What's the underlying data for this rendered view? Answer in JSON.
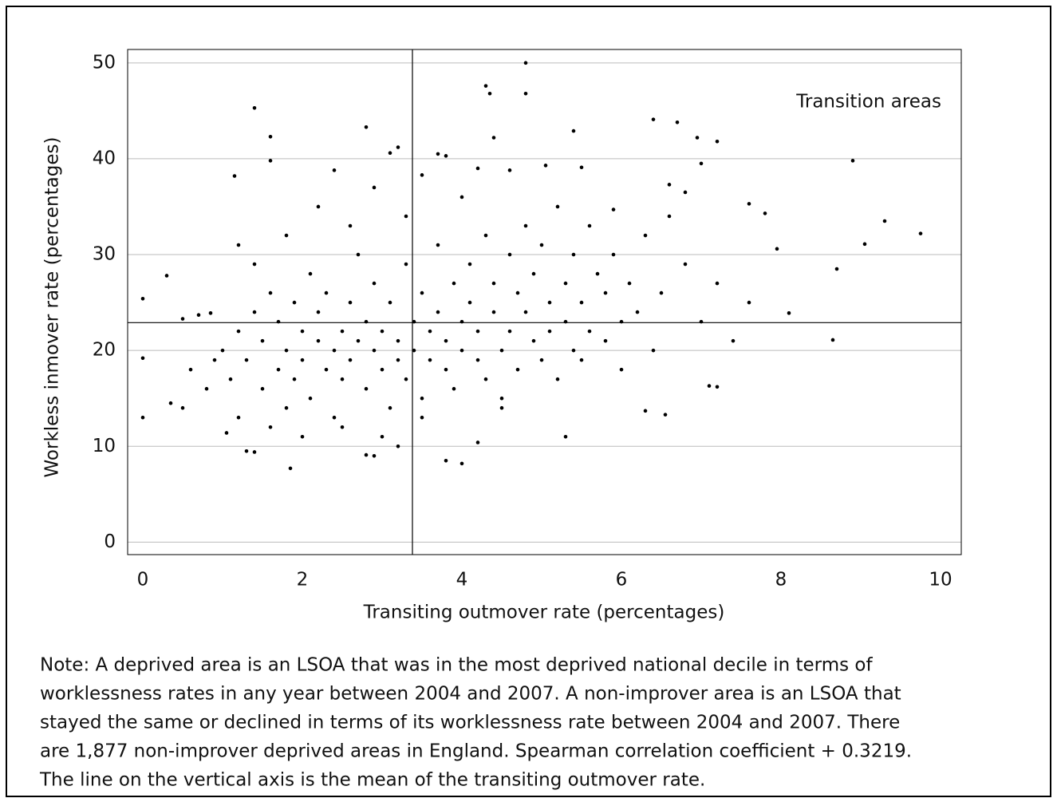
{
  "chart_data": {
    "type": "scatter",
    "xlabel": "Transiting outmover rate (percentages)",
    "ylabel": "Workless inmover rate (percentages)",
    "annotation": "Transition areas",
    "color": "#000000",
    "grid": true,
    "xlim": [
      -0.19,
      10.26
    ],
    "ylim": [
      -1.3,
      51.4
    ],
    "xticks": [
      0,
      2,
      4,
      6,
      8,
      10
    ],
    "yticks": [
      0,
      10,
      20,
      30,
      40,
      50
    ],
    "mean_x": 3.38,
    "mean_y": 22.9,
    "x": [
      0.0,
      0.0,
      0.0,
      0.3,
      1.4,
      1.6,
      1.6,
      2.8,
      3.1,
      3.2,
      4.3,
      4.35,
      4.8,
      4.8,
      4.4,
      5.4,
      6.4,
      6.7,
      6.95,
      7.2,
      8.9,
      9.75,
      9.3,
      9.05,
      8.7,
      8.65,
      8.1,
      7.95,
      7.8,
      7.6,
      7.2,
      7.1,
      6.3,
      6.55,
      5.3,
      4.2,
      3.8,
      4.0,
      1.85,
      2.8,
      2.9,
      3.2,
      1.3,
      1.4,
      1.05,
      0.35,
      0.5,
      0.5,
      0.7,
      0.85,
      1.15,
      1.2,
      7.0,
      6.6,
      6.8,
      5.9,
      5.5,
      5.05,
      4.6,
      4.2,
      3.8,
      3.7,
      3.5,
      1.0,
      1.1,
      1.2,
      1.3,
      1.4,
      1.5,
      1.5,
      1.6,
      1.7,
      1.7,
      1.8,
      1.8,
      1.9,
      1.9,
      2.0,
      2.0,
      2.1,
      2.1,
      2.2,
      2.2,
      2.3,
      2.3,
      2.4,
      2.4,
      2.5,
      2.5,
      2.6,
      2.6,
      2.7,
      2.7,
      2.8,
      2.8,
      2.9,
      2.9,
      3.0,
      3.0,
      3.1,
      3.1,
      3.2,
      3.2,
      3.3,
      3.3,
      3.4,
      3.4,
      3.5,
      3.5,
      3.6,
      3.6,
      3.7,
      3.7,
      3.8,
      3.8,
      3.9,
      3.9,
      4.0,
      4.0,
      4.1,
      4.1,
      4.2,
      4.2,
      4.3,
      4.3,
      4.4,
      4.4,
      4.5,
      4.5,
      4.6,
      4.6,
      4.7,
      4.7,
      4.8,
      4.8,
      4.9,
      4.9,
      5.0,
      5.0,
      5.1,
      5.1,
      5.2,
      5.2,
      5.3,
      5.3,
      5.4,
      5.4,
      5.5,
      5.5,
      5.6,
      5.6,
      5.7,
      5.8,
      5.8,
      5.9,
      6.0,
      6.0,
      6.1,
      6.2,
      6.3,
      6.4,
      6.5,
      6.6,
      6.8,
      7.0,
      7.2,
      7.4,
      7.6,
      0.8,
      0.9,
      0.6,
      1.2,
      1.6,
      2.0,
      2.5,
      3.0,
      3.5,
      4.5,
      1.4,
      1.8,
      2.2,
      2.6,
      2.9,
      3.3,
      4.0,
      2.4
    ],
    "values": [
      25.4,
      19.2,
      13,
      27.8,
      45.3,
      42.3,
      39.8,
      43.3,
      40.6,
      41.2,
      47.6,
      46.8,
      50,
      46.8,
      42.2,
      42.9,
      44.1,
      43.8,
      42.2,
      41.8,
      39.8,
      32.2,
      33.5,
      31.1,
      28.5,
      21.1,
      23.9,
      30.6,
      34.3,
      35.3,
      16.2,
      16.3,
      13.7,
      13.3,
      11,
      10.4,
      8.5,
      8.2,
      7.7,
      9.1,
      9,
      10,
      9.5,
      9.4,
      11.4,
      14.5,
      14,
      23.3,
      23.7,
      23.9,
      38.2,
      31,
      39.5,
      37.3,
      36.5,
      34.7,
      39.1,
      39.3,
      38.8,
      39.0,
      40.3,
      40.5,
      38.3,
      20,
      17,
      22,
      19,
      24,
      16,
      21,
      26,
      18,
      23,
      14,
      20,
      25,
      17,
      22,
      19,
      28,
      15,
      21,
      24,
      18,
      26,
      20,
      13,
      22,
      17,
      25,
      19,
      30,
      21,
      16,
      23,
      20,
      27,
      18,
      22,
      14,
      25,
      19,
      21,
      29,
      17,
      23,
      20,
      26,
      15,
      22,
      19,
      31,
      24,
      18,
      21,
      27,
      16,
      23,
      20,
      29,
      25,
      19,
      22,
      32,
      17,
      24,
      27,
      20,
      15,
      30,
      22,
      26,
      18,
      24,
      33,
      21,
      28,
      19,
      31,
      25,
      22,
      35,
      17,
      27,
      23,
      20,
      30,
      25,
      19,
      33,
      22,
      28,
      21,
      26,
      30,
      23,
      18,
      27,
      24,
      32,
      20,
      26,
      34,
      29,
      23,
      27,
      21,
      25,
      16,
      19,
      18,
      13,
      12,
      11,
      12,
      11,
      13,
      14,
      29,
      32,
      35,
      33,
      37,
      34,
      36,
      38.8
    ]
  },
  "note": [
    "Note: A deprived area is an LSOA that was in the most deprived national decile in terms of",
    "worklessness rates in any year between 2004 and 2007. A non-improver area is an LSOA that",
    "stayed the same or declined in terms of its worklessness rate between 2004 and 2007. There",
    "are 1,877 non-improver deprived areas in England. Spearman correlation coefficient + 0.3219.",
    "The line on the vertical axis is the mean of the transiting outmover rate."
  ]
}
